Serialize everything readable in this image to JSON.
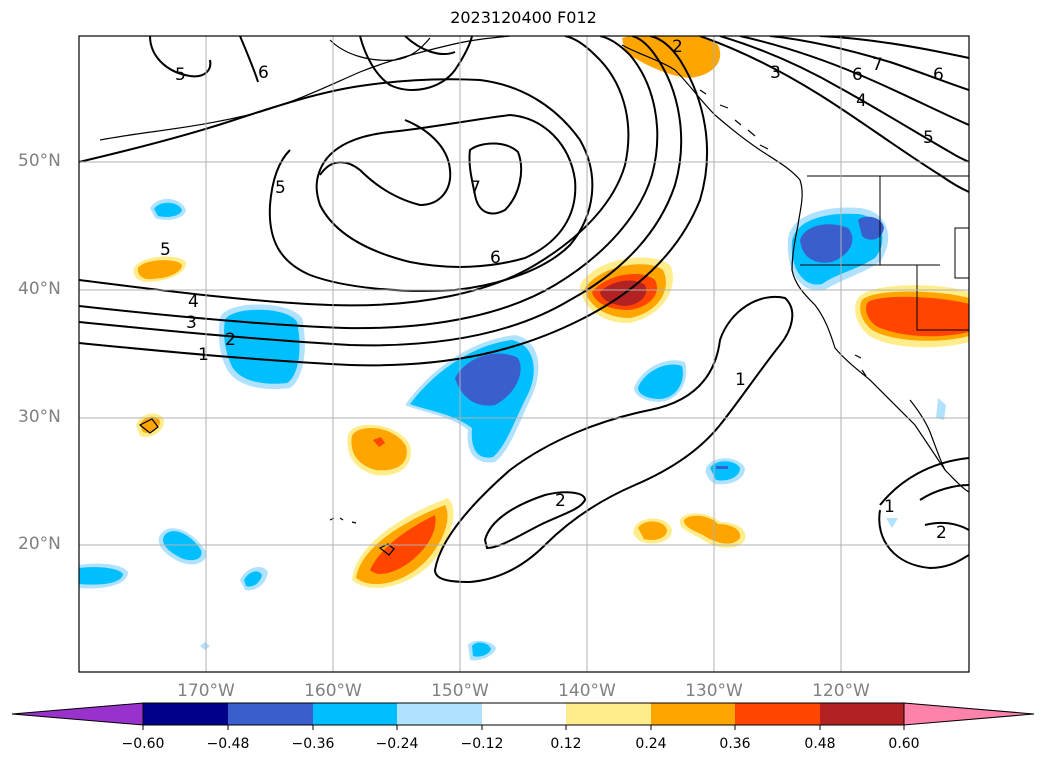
{
  "title": "2023120400 F012",
  "lat_labels": [
    "50°N",
    "40°N",
    "30°N",
    "20°N"
  ],
  "lon_labels": [
    "170°W",
    "160°W",
    "150°W",
    "140°W",
    "130°W",
    "120°W"
  ],
  "contour_labels": [
    "5",
    "6",
    "5",
    "7",
    "6",
    "5",
    "4",
    "3",
    "2",
    "1",
    "2",
    "3",
    "6",
    "7",
    "6",
    "4",
    "5",
    "1",
    "2",
    "1",
    "2"
  ],
  "colorbar": {
    "ticks": [
      "−0.60",
      "−0.48",
      "−0.36",
      "−0.24",
      "−0.12",
      "0.12",
      "0.24",
      "0.36",
      "0.48",
      "0.60"
    ],
    "colors": [
      "#9932cc",
      "#00008b",
      "#3a5fcd",
      "#00bfff",
      "#b0e2ff",
      "#ffffff",
      "#ffec8b",
      "#ffa500",
      "#ff4500",
      "#b22222",
      "#ff82ab"
    ]
  }
}
